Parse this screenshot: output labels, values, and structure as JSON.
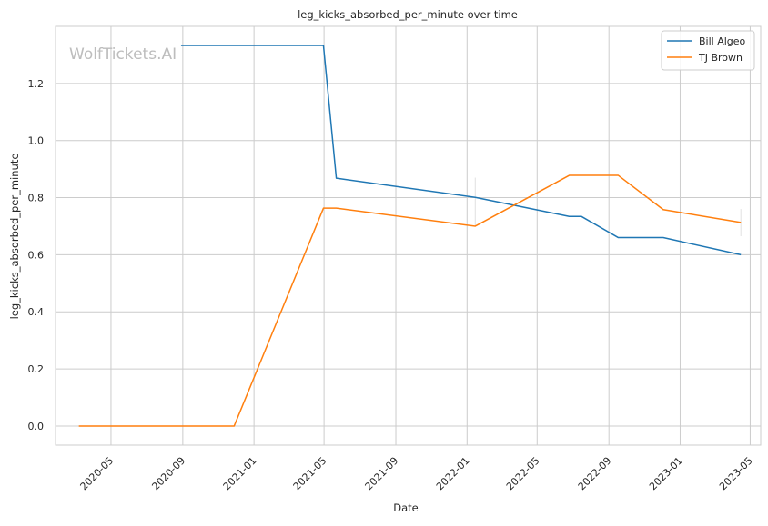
{
  "chart_data": {
    "type": "line",
    "title": "leg_kicks_absorbed_per_minute over time",
    "xlabel": "Date",
    "ylabel": "leg_kicks_absorbed_per_minute",
    "x_tick_labels": [
      "2020-05",
      "2020-09",
      "2021-01",
      "2021-05",
      "2021-09",
      "2022-01",
      "2022-05",
      "2022-09",
      "2023-01",
      "2023-05"
    ],
    "y_tick_labels": [
      "0.0",
      "0.2",
      "0.4",
      "0.6",
      "0.8",
      "1.0",
      "1.2"
    ],
    "xlim": [
      "2020-01-27",
      "2023-05-19"
    ],
    "ylim": [
      -0.067,
      1.4
    ],
    "grid": true,
    "legend_position": "top-right",
    "watermark": "WolfTickets.AI",
    "series": [
      {
        "name": "Bill Algeo",
        "color": "#1f77b4",
        "points": [
          {
            "x": "2020-08-29",
            "y": 1.333
          },
          {
            "x": "2021-04-30",
            "y": 1.333
          },
          {
            "x": "2021-05-22",
            "y": 0.868
          },
          {
            "x": "2022-01-15",
            "y": 0.801
          },
          {
            "x": "2022-06-25",
            "y": 0.734
          },
          {
            "x": "2022-07-16",
            "y": 0.734
          },
          {
            "x": "2022-09-17",
            "y": 0.66
          },
          {
            "x": "2022-12-03",
            "y": 0.66
          },
          {
            "x": "2023-04-15",
            "y": 0.6
          }
        ]
      },
      {
        "name": "TJ Brown",
        "color": "#ff7f0e",
        "points": [
          {
            "x": "2020-03-07",
            "y": 0.0
          },
          {
            "x": "2020-11-28",
            "y": 0.0
          },
          {
            "x": "2021-04-30",
            "y": 0.763
          },
          {
            "x": "2021-05-22",
            "y": 0.763
          },
          {
            "x": "2022-01-15",
            "y": 0.7
          },
          {
            "x": "2022-06-25",
            "y": 0.878
          },
          {
            "x": "2022-09-17",
            "y": 0.878
          },
          {
            "x": "2022-12-03",
            "y": 0.758
          },
          {
            "x": "2023-04-15",
            "y": 0.713
          }
        ]
      }
    ]
  }
}
